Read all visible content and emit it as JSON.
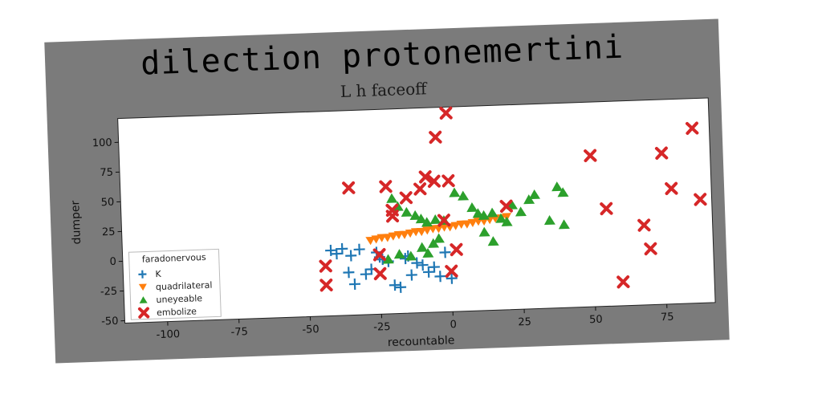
{
  "chart_data": {
    "type": "scatter",
    "title": "dilection protonemertini",
    "subtitle": "L h faceoff",
    "xlabel": "recountable",
    "ylabel": "dumper",
    "xlim": [
      -115,
      92
    ],
    "ylim": [
      -52,
      120
    ],
    "xticks": [
      -100,
      -75,
      -50,
      -25,
      0,
      25,
      50,
      75
    ],
    "yticks": [
      -50,
      -25,
      0,
      25,
      50,
      75,
      100
    ],
    "grid": false,
    "legend": {
      "title": "faradonervous",
      "position": "lower-left"
    },
    "colors": {
      "background": "#7b7b7b",
      "plot_area": "#ffffff"
    },
    "series": [
      {
        "name": "K",
        "marker": "plus",
        "color": "#1f77b4",
        "points": [
          [
            -42,
            3
          ],
          [
            -40,
            0
          ],
          [
            -38,
            4
          ],
          [
            -35,
            -2
          ],
          [
            -32,
            3
          ],
          [
            -30,
            -18
          ],
          [
            -28,
            -14
          ],
          [
            -26,
            0
          ],
          [
            -24,
            -6
          ],
          [
            -22,
            -8
          ],
          [
            -20,
            -28
          ],
          [
            -18,
            -30
          ],
          [
            -16,
            -6
          ],
          [
            -14,
            -20
          ],
          [
            -12,
            -10
          ],
          [
            -10,
            -12
          ],
          [
            -8,
            -18
          ],
          [
            -6,
            -14
          ],
          [
            -4,
            -22
          ],
          [
            -2,
            -2
          ],
          [
            0,
            -24
          ],
          [
            -34,
            -26
          ],
          [
            -36,
            -16
          ],
          [
            -25,
            -4
          ],
          [
            -15,
            -4
          ]
        ]
      },
      {
        "name": "quadrilateral",
        "marker": "triangle-down",
        "color": "#ff7f0e",
        "points": [
          [
            -28,
            10
          ],
          [
            -26,
            11
          ],
          [
            -24,
            12
          ],
          [
            -22,
            12
          ],
          [
            -20,
            13
          ],
          [
            -18,
            14
          ],
          [
            -16,
            14
          ],
          [
            -14,
            15
          ],
          [
            -12,
            16
          ],
          [
            -10,
            16
          ],
          [
            -8,
            17
          ],
          [
            -6,
            18
          ],
          [
            -4,
            18
          ],
          [
            -2,
            19
          ],
          [
            0,
            19
          ],
          [
            2,
            20
          ],
          [
            4,
            21
          ],
          [
            6,
            21
          ],
          [
            8,
            22
          ],
          [
            10,
            23
          ],
          [
            12,
            23
          ],
          [
            14,
            24
          ],
          [
            16,
            25
          ],
          [
            18,
            25
          ],
          [
            20,
            26
          ]
        ]
      },
      {
        "name": "uneyeable",
        "marker": "triangle-up",
        "color": "#2ca02c",
        "points": [
          [
            -20,
            45
          ],
          [
            -18,
            38
          ],
          [
            -15,
            33
          ],
          [
            -12,
            30
          ],
          [
            -10,
            27
          ],
          [
            -8,
            24
          ],
          [
            -5,
            26
          ],
          [
            -2,
            25
          ],
          [
            2,
            48
          ],
          [
            5,
            45
          ],
          [
            8,
            35
          ],
          [
            10,
            30
          ],
          [
            12,
            28
          ],
          [
            15,
            30
          ],
          [
            18,
            25
          ],
          [
            20,
            22
          ],
          [
            22,
            36
          ],
          [
            25,
            30
          ],
          [
            28,
            40
          ],
          [
            30,
            44
          ],
          [
            35,
            22
          ],
          [
            38,
            50
          ],
          [
            40,
            18
          ],
          [
            -14,
            -4
          ],
          [
            -18,
            -2
          ],
          [
            -10,
            3
          ],
          [
            -6,
            6
          ],
          [
            -4,
            10
          ],
          [
            12,
            14
          ],
          [
            15,
            6
          ],
          [
            -22,
            -6
          ],
          [
            -8,
            -2
          ],
          [
            40,
            45
          ]
        ]
      },
      {
        "name": "embolize",
        "marker": "x",
        "color": "#d62728",
        "points": [
          [
            0,
            115
          ],
          [
            -4,
            95
          ],
          [
            -35,
            55
          ],
          [
            -22,
            55
          ],
          [
            -20,
            35
          ],
          [
            -15,
            45
          ],
          [
            -10,
            52
          ],
          [
            -8,
            62
          ],
          [
            -5,
            58
          ],
          [
            0,
            58
          ],
          [
            -20,
            30
          ],
          [
            -2,
            25
          ],
          [
            20,
            35
          ],
          [
            50,
            75
          ],
          [
            55,
            30
          ],
          [
            68,
            15
          ],
          [
            70,
            -5
          ],
          [
            75,
            75
          ],
          [
            78,
            45
          ],
          [
            86,
            95
          ],
          [
            88,
            35
          ],
          [
            60,
            -32
          ],
          [
            -44,
            -10
          ],
          [
            -44,
            -26
          ],
          [
            -25,
            -18
          ],
          [
            -25,
            -2
          ],
          [
            0,
            -18
          ],
          [
            2,
            0
          ]
        ]
      }
    ]
  }
}
